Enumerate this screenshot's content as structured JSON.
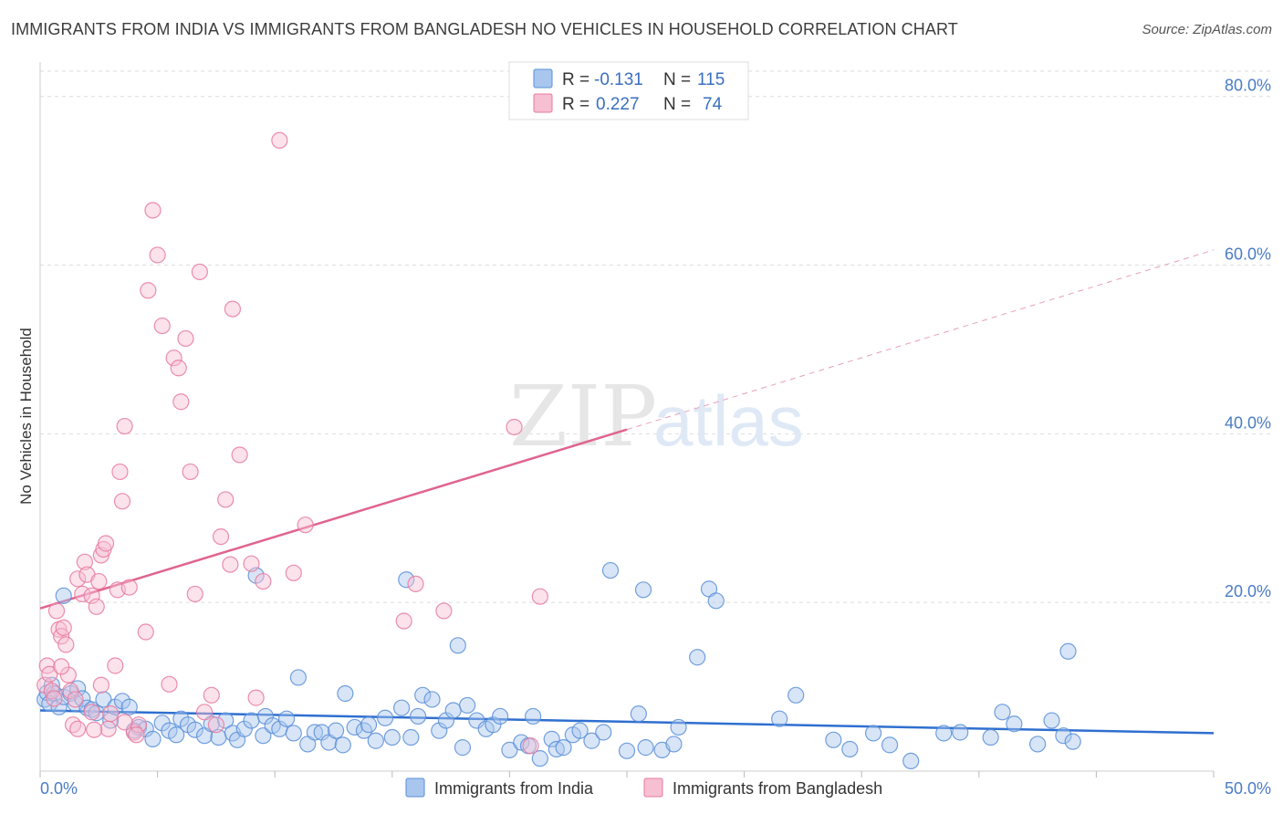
{
  "title": "IMMIGRANTS FROM INDIA VS IMMIGRANTS FROM BANGLADESH NO VEHICLES IN HOUSEHOLD CORRELATION CHART",
  "source": "Source: ZipAtlas.com",
  "colors": {
    "india": "#5a8fd8",
    "india_fill": "#a9c6ee",
    "bangladesh": "#e87aa0",
    "bangladesh_fill": "#f6bfd2",
    "tick": "#4a7cc4",
    "grid": "#dddddd"
  },
  "legend": {
    "rows": [
      {
        "r_label": "R =",
        "r_value": "-0.131",
        "n_label": "N =",
        "n_value": "115"
      },
      {
        "r_label": "R =",
        "r_value": "0.227",
        "n_label": "N =",
        "n_value": "74"
      }
    ]
  },
  "watermark": {
    "zip": "ZIP",
    "atlas": "atlas"
  },
  "chart_data": {
    "type": "scatter",
    "xlabel": "",
    "ylabel": "No Vehicles in Household",
    "xlim": [
      0,
      50
    ],
    "ylim": [
      0,
      83
    ],
    "x_ticks": [
      "0.0%",
      "50.0%"
    ],
    "y_ticks": [
      {
        "value": 20,
        "label": "20.0%"
      },
      {
        "value": 40,
        "label": "40.0%"
      },
      {
        "value": 60,
        "label": "60.0%"
      },
      {
        "value": 80,
        "label": "80.0%"
      }
    ],
    "grid": true,
    "legend_position": "top-center",
    "series": [
      {
        "name": "Immigrants from India",
        "trend": {
          "x0": 0,
          "y0": 7.2,
          "x1": 50,
          "y1": 4.5
        },
        "points": [
          [
            0.2,
            8.5
          ],
          [
            0.3,
            9.3
          ],
          [
            0.4,
            8.0
          ],
          [
            0.5,
            10.2
          ],
          [
            0.6,
            9.2
          ],
          [
            0.8,
            7.6
          ],
          [
            1.0,
            8.8
          ],
          [
            1.3,
            9.2
          ],
          [
            1.5,
            8.0
          ],
          [
            1.6,
            9.8
          ],
          [
            1.8,
            8.6
          ],
          [
            2.0,
            7.5
          ],
          [
            2.2,
            7.3
          ],
          [
            2.4,
            6.9
          ],
          [
            2.7,
            8.5
          ],
          [
            3.0,
            6.0
          ],
          [
            3.2,
            7.6
          ],
          [
            3.5,
            8.3
          ],
          [
            3.8,
            7.6
          ],
          [
            4.0,
            4.8
          ],
          [
            4.2,
            5.2
          ],
          [
            4.5,
            5.0
          ],
          [
            4.8,
            3.8
          ],
          [
            5.2,
            5.7
          ],
          [
            5.5,
            4.8
          ],
          [
            5.8,
            4.3
          ],
          [
            6.0,
            6.2
          ],
          [
            6.3,
            5.5
          ],
          [
            6.6,
            4.9
          ],
          [
            7.0,
            4.2
          ],
          [
            7.3,
            5.6
          ],
          [
            7.6,
            4.0
          ],
          [
            7.9,
            6.0
          ],
          [
            8.2,
            4.5
          ],
          [
            8.4,
            3.7
          ],
          [
            8.7,
            5.0
          ],
          [
            9.0,
            6.0
          ],
          [
            9.2,
            23.2
          ],
          [
            9.5,
            4.2
          ],
          [
            9.6,
            6.5
          ],
          [
            9.9,
            5.4
          ],
          [
            10.2,
            5.0
          ],
          [
            10.5,
            6.2
          ],
          [
            10.8,
            4.5
          ],
          [
            11.0,
            11.1
          ],
          [
            11.4,
            3.2
          ],
          [
            11.7,
            4.6
          ],
          [
            12.0,
            4.6
          ],
          [
            12.3,
            3.4
          ],
          [
            12.6,
            4.8
          ],
          [
            12.9,
            3.1
          ],
          [
            13.0,
            9.2
          ],
          [
            13.4,
            5.2
          ],
          [
            13.8,
            4.8
          ],
          [
            14.0,
            5.5
          ],
          [
            14.3,
            3.6
          ],
          [
            14.7,
            6.3
          ],
          [
            15.0,
            4.0
          ],
          [
            15.4,
            7.5
          ],
          [
            15.8,
            4.0
          ],
          [
            16.1,
            6.5
          ],
          [
            16.3,
            9.0
          ],
          [
            16.7,
            8.5
          ],
          [
            17.0,
            4.8
          ],
          [
            17.3,
            6.0
          ],
          [
            17.6,
            7.2
          ],
          [
            18.0,
            2.8
          ],
          [
            18.2,
            7.8
          ],
          [
            18.6,
            6.0
          ],
          [
            19.0,
            5.0
          ],
          [
            19.3,
            5.5
          ],
          [
            19.6,
            6.5
          ],
          [
            20.0,
            2.5
          ],
          [
            20.5,
            3.4
          ],
          [
            20.8,
            3.0
          ],
          [
            21.0,
            6.5
          ],
          [
            21.3,
            1.5
          ],
          [
            21.8,
            3.8
          ],
          [
            22.0,
            2.6
          ],
          [
            22.3,
            2.8
          ],
          [
            22.7,
            4.3
          ],
          [
            23.0,
            4.8
          ],
          [
            23.5,
            3.6
          ],
          [
            24.0,
            4.6
          ],
          [
            25.0,
            2.4
          ],
          [
            25.5,
            6.8
          ],
          [
            25.8,
            2.8
          ],
          [
            26.5,
            2.5
          ],
          [
            27.0,
            3.2
          ],
          [
            27.2,
            5.2
          ],
          [
            17.8,
            14.9
          ],
          [
            15.6,
            22.7
          ],
          [
            24.3,
            23.8
          ],
          [
            25.7,
            21.5
          ],
          [
            28.0,
            13.5
          ],
          [
            28.5,
            21.6
          ],
          [
            28.8,
            20.2
          ],
          [
            31.5,
            6.2
          ],
          [
            32.2,
            9.0
          ],
          [
            33.8,
            3.7
          ],
          [
            34.5,
            2.6
          ],
          [
            35.5,
            4.5
          ],
          [
            36.2,
            3.1
          ],
          [
            37.1,
            1.2
          ],
          [
            38.5,
            4.5
          ],
          [
            39.2,
            4.6
          ],
          [
            40.5,
            4.0
          ],
          [
            41.0,
            7.0
          ],
          [
            41.5,
            5.6
          ],
          [
            42.5,
            3.2
          ],
          [
            43.1,
            6.0
          ],
          [
            43.6,
            4.2
          ],
          [
            43.8,
            14.2
          ],
          [
            44.0,
            3.5
          ],
          [
            1.0,
            20.8
          ]
        ]
      },
      {
        "name": "Immigrants from Bangladesh",
        "trend": {
          "x0": 0,
          "y0": 19.3,
          "x1": 25.0,
          "y1": 40.5,
          "dash_x1": 50,
          "dash_y1": 61.8
        },
        "points": [
          [
            0.2,
            10.2
          ],
          [
            0.3,
            12.5
          ],
          [
            0.4,
            11.5
          ],
          [
            0.5,
            9.5
          ],
          [
            0.6,
            8.6
          ],
          [
            0.7,
            19.0
          ],
          [
            0.8,
            16.8
          ],
          [
            0.9,
            16.0
          ],
          [
            1.0,
            17.0
          ],
          [
            1.1,
            15.0
          ],
          [
            1.2,
            11.4
          ],
          [
            1.3,
            9.5
          ],
          [
            1.4,
            5.5
          ],
          [
            1.5,
            8.5
          ],
          [
            1.6,
            22.8
          ],
          [
            1.8,
            21.0
          ],
          [
            1.9,
            24.8
          ],
          [
            2.0,
            23.3
          ],
          [
            2.2,
            20.8
          ],
          [
            2.4,
            19.5
          ],
          [
            2.5,
            22.5
          ],
          [
            2.6,
            25.6
          ],
          [
            2.7,
            26.3
          ],
          [
            2.8,
            27.0
          ],
          [
            2.9,
            5.0
          ],
          [
            3.0,
            6.8
          ],
          [
            3.2,
            12.5
          ],
          [
            3.3,
            21.5
          ],
          [
            3.4,
            35.5
          ],
          [
            3.5,
            32.0
          ],
          [
            3.6,
            40.9
          ],
          [
            3.8,
            21.8
          ],
          [
            4.0,
            4.6
          ],
          [
            4.2,
            5.5
          ],
          [
            4.5,
            16.5
          ],
          [
            4.6,
            57.0
          ],
          [
            4.8,
            66.5
          ],
          [
            5.0,
            61.2
          ],
          [
            5.2,
            52.8
          ],
          [
            5.5,
            10.3
          ],
          [
            5.7,
            49.0
          ],
          [
            5.9,
            47.8
          ],
          [
            6.0,
            43.8
          ],
          [
            6.2,
            51.3
          ],
          [
            6.4,
            35.5
          ],
          [
            6.6,
            21.0
          ],
          [
            6.8,
            59.2
          ],
          [
            7.0,
            7.0
          ],
          [
            7.3,
            9.0
          ],
          [
            7.5,
            5.5
          ],
          [
            7.7,
            27.8
          ],
          [
            7.9,
            32.2
          ],
          [
            8.1,
            24.5
          ],
          [
            8.2,
            54.8
          ],
          [
            8.5,
            37.5
          ],
          [
            9.0,
            24.6
          ],
          [
            9.2,
            8.7
          ],
          [
            9.5,
            22.5
          ],
          [
            10.2,
            74.8
          ],
          [
            10.8,
            23.5
          ],
          [
            11.3,
            29.2
          ],
          [
            15.5,
            17.8
          ],
          [
            16.0,
            22.2
          ],
          [
            17.2,
            19.0
          ],
          [
            20.2,
            40.8
          ],
          [
            20.9,
            3.0
          ],
          [
            21.3,
            20.7
          ],
          [
            3.6,
            5.8
          ],
          [
            4.1,
            4.3
          ],
          [
            2.2,
            7.0
          ],
          [
            1.6,
            5.0
          ],
          [
            2.3,
            4.9
          ],
          [
            2.6,
            10.2
          ],
          [
            0.9,
            12.4
          ]
        ]
      }
    ]
  }
}
